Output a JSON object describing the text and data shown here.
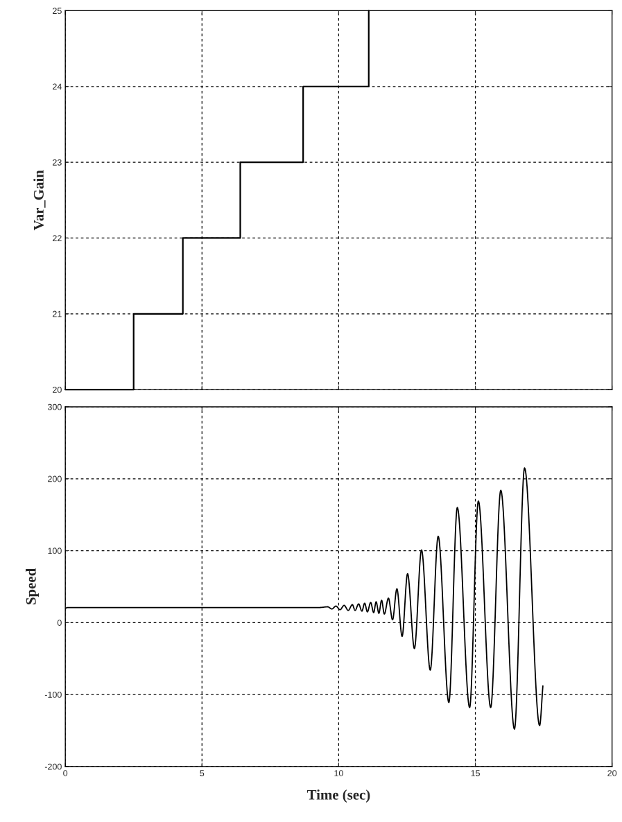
{
  "chart_data": [
    {
      "type": "step",
      "ylabel": "Var_Gain",
      "xlim": [
        0,
        20
      ],
      "ylim": [
        20,
        25
      ],
      "xticks": [
        0,
        5,
        10,
        15,
        20
      ],
      "yticks": [
        20,
        21,
        22,
        23,
        24,
        25
      ],
      "grid": true,
      "tick_labels": "y",
      "series": [
        {
          "color": "#000000",
          "x": [
            0,
            2.5,
            4.3,
            6.4,
            8.7,
            11.1
          ],
          "values": [
            20,
            21,
            22,
            23,
            24,
            25
          ]
        }
      ]
    },
    {
      "type": "line",
      "ylabel": "Speed",
      "xlabel": "Time (sec)",
      "xlim": [
        0,
        20
      ],
      "ylim": [
        -200,
        300
      ],
      "xticks": [
        0,
        5,
        10,
        15,
        20
      ],
      "yticks": [
        -200,
        -100,
        0,
        100,
        200,
        300
      ],
      "grid": true,
      "series": [
        {
          "color": "#000000",
          "x": [
            0,
            0.1,
            5,
            9.3,
            9.6,
            9.75,
            9.9,
            10.05,
            10.2,
            10.35,
            10.5,
            10.6,
            10.73,
            10.85,
            10.95,
            11.05,
            11.17,
            11.28,
            11.37,
            11.47,
            11.57,
            11.67,
            11.82,
            11.97,
            12.13,
            12.32,
            12.52,
            12.77,
            13.03,
            13.35,
            13.64,
            14.03,
            14.34,
            14.79,
            15.11,
            15.56,
            15.93,
            16.43,
            16.8,
            17.35,
            17.47
          ],
          "values": [
            20,
            21,
            21,
            21,
            22,
            19,
            23,
            18,
            24,
            17,
            25,
            17,
            26,
            16,
            27,
            15,
            28,
            14,
            29,
            13,
            31,
            12,
            34,
            4,
            47,
            -19,
            68,
            -36,
            101,
            -66,
            120,
            -111,
            160,
            -118,
            169,
            -118,
            184,
            -148,
            215,
            -143,
            -88
          ]
        }
      ]
    }
  ]
}
